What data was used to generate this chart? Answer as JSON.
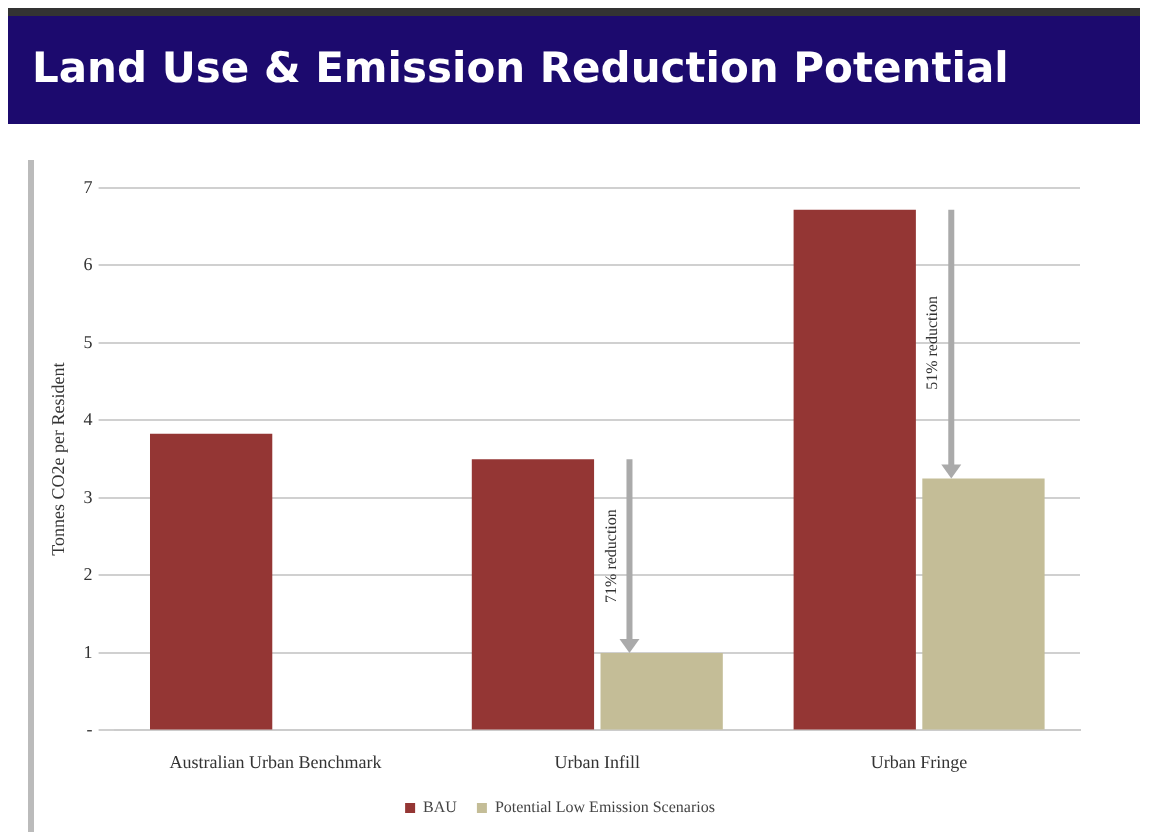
{
  "chart_data": {
    "type": "bar",
    "title": "Land Use & Emission Reduction Potential",
    "ylabel": "Tonnes CO2e per Resident",
    "categories": [
      "Australian Urban Benchmark",
      "Urban Infill",
      "Urban Fringe"
    ],
    "series": [
      {
        "name": "BAU",
        "color": "#943634",
        "values": [
          3.83,
          3.5,
          6.72
        ]
      },
      {
        "name": "Potential Low Emission Scenarios",
        "color": "#c4bd97",
        "values": [
          null,
          1.0,
          3.25
        ]
      }
    ],
    "ylim": [
      0,
      7
    ],
    "yticks": [
      {
        "value": 0,
        "label": "-"
      },
      1,
      2,
      3,
      4,
      5,
      6,
      7
    ],
    "grid": "y",
    "legend": "bottom",
    "annotations": [
      {
        "text": "71% reduction",
        "x": "Urban Infill",
        "y": 2.25
      },
      {
        "text": "51% reduction",
        "x": "Urban Fringe",
        "y": 5
      }
    ]
  }
}
